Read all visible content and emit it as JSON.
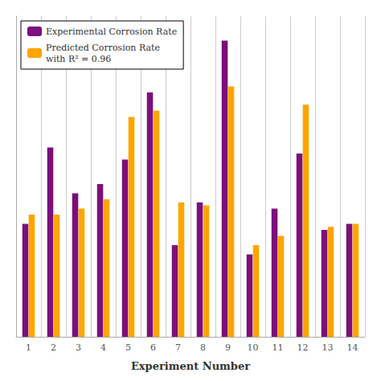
{
  "chart_data": {
    "type": "bar",
    "xlabel": "Experiment Number",
    "categories": [
      "1",
      "2",
      "3",
      "4",
      "5",
      "6",
      "7",
      "8",
      "9",
      "10",
      "11",
      "12",
      "13",
      "14"
    ],
    "series": [
      {
        "name": "Experimental Corrosion Rate",
        "color": "#7B0F7B",
        "values": [
          0.37,
          0.62,
          0.47,
          0.5,
          0.58,
          0.8,
          0.3,
          0.44,
          0.97,
          0.27,
          0.42,
          0.6,
          0.35,
          0.37
        ]
      },
      {
        "name": "Predicted Corrosion Rate\nwith R² = 0.96",
        "color": "#FFA500",
        "values": [
          0.4,
          0.4,
          0.42,
          0.45,
          0.72,
          0.74,
          0.44,
          0.43,
          0.82,
          0.3,
          0.33,
          0.76,
          0.36,
          0.37
        ]
      }
    ],
    "ylim": [
      0,
      1.05
    ],
    "grid": true,
    "legend": "upper left",
    "tick_labels": "x"
  }
}
